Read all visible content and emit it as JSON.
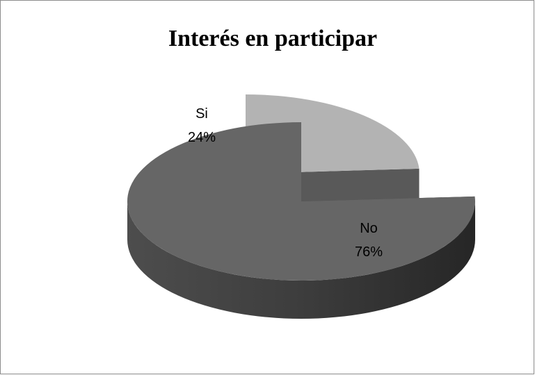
{
  "chart_data": {
    "type": "pie",
    "title": "Interés en participar",
    "categories": [
      "Si",
      "No"
    ],
    "values": [
      24,
      76
    ],
    "value_labels": [
      "24%",
      "76%"
    ],
    "colors": [
      "#b3b3b3",
      "#666666"
    ]
  }
}
